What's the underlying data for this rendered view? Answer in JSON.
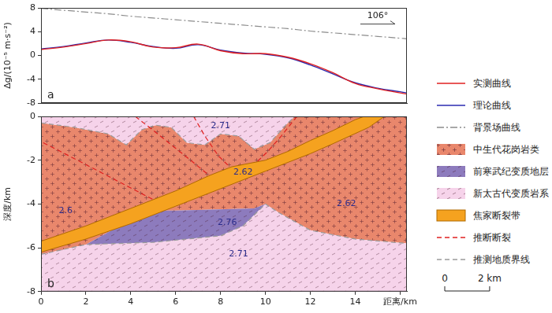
{
  "chart_data": [
    {
      "type": "line",
      "panel": "a",
      "y_label": "Δg/(10⁻⁵ m·s⁻²)",
      "xlim": [
        0,
        16.3
      ],
      "ylim": [
        -8,
        8
      ],
      "yticks": [
        -8,
        -4,
        0,
        4,
        8
      ],
      "tick_labels": "y",
      "grid": false,
      "legend": "right",
      "x": [
        0,
        1,
        2,
        3,
        4,
        5,
        6,
        7,
        8,
        9,
        10,
        11,
        12,
        13,
        14,
        15,
        16,
        16.3
      ],
      "series": [
        {
          "name": "实测曲线",
          "color": "#e02020",
          "line_style": "solid",
          "values": [
            1.0,
            1.4,
            2.0,
            2.6,
            2.3,
            1.4,
            1.3,
            1.9,
            0.8,
            0.3,
            0.3,
            -0.3,
            -1.4,
            -2.9,
            -4.7,
            -5.6,
            -6.3,
            -6.5
          ]
        },
        {
          "name": "理论曲线",
          "color": "#2b2bb0",
          "line_style": "solid",
          "values": [
            1.1,
            1.5,
            2.1,
            2.6,
            2.2,
            1.5,
            1.2,
            1.8,
            0.9,
            0.4,
            0.2,
            -0.4,
            -1.6,
            -3.1,
            -4.6,
            -5.5,
            -6.1,
            -6.3
          ]
        },
        {
          "name": "背景场曲线",
          "color": "#8c8c8c",
          "line_style": "dashdot",
          "values": [
            7.9,
            7.6,
            7.3,
            7.0,
            6.6,
            6.3,
            6.0,
            5.7,
            5.4,
            5.1,
            4.8,
            4.5,
            4.1,
            3.8,
            3.5,
            3.2,
            2.9,
            2.8
          ]
        }
      ],
      "annotations": [
        {
          "text": "106°",
          "x": 15.0,
          "y": 6.6
        }
      ]
    },
    {
      "type": "section",
      "panel": "b",
      "y_label": "深度/km",
      "xlim": [
        0,
        16.3
      ],
      "ylim": [
        -8,
        0
      ],
      "xticks": [
        0,
        2,
        4,
        6,
        8,
        10,
        12,
        14,
        {
          "value": 16,
          "label": "距离/km"
        }
      ],
      "yticks": [
        -8,
        -6,
        -4,
        -2,
        0
      ],
      "grid": false,
      "series": [
        {
          "name": "中生代花岗岩类",
          "type": "polygon",
          "color": "#e9876c",
          "marker": "plus",
          "x": [
            0,
            1.5,
            3,
            3.8,
            4.5,
            5.1,
            5.8,
            6.5,
            7.3,
            8,
            8.8,
            9.5,
            10.2,
            10.9,
            11.3,
            16.3,
            16.3,
            14,
            12,
            10.6,
            10,
            9.5,
            6,
            4.8,
            3.5,
            2,
            0
          ],
          "y": [
            -0.3,
            -0.5,
            -0.8,
            -1.3,
            -0.6,
            -0.4,
            -0.5,
            -1.2,
            -1.3,
            -0.8,
            -0.9,
            -1.5,
            -1.2,
            -0.4,
            0,
            0,
            -5.8,
            -5.6,
            -5.2,
            -4.4,
            -4.0,
            -4.2,
            -4.3,
            -4.3,
            -5.0,
            -5.85,
            -6.3
          ]
        },
        {
          "name": "前寒武纪变质地层",
          "type": "polygon",
          "color": "#8d7bbd",
          "marker": "dash",
          "x": [
            4.8,
            6,
            9.5,
            10,
            9.6,
            9,
            8,
            5,
            2,
            3.5
          ],
          "y": [
            -4.3,
            -4.3,
            -4.2,
            -4.0,
            -4.4,
            -5.0,
            -5.45,
            -5.75,
            -5.85,
            -5.0
          ]
        },
        {
          "name": "新太古代变质岩系",
          "type": "polygon",
          "color": "#f6d3ea",
          "marker": "dash",
          "x": [
            0,
            11.3,
            10.9,
            10.2,
            9.5,
            8.8,
            8,
            7.3,
            6.5,
            5.8,
            5.1,
            4.5,
            3.8,
            3,
            1.5,
            0,
            null,
            0,
            2,
            5,
            8,
            9,
            9.6,
            10,
            10.6,
            12,
            14,
            16.3,
            16.3,
            0
          ],
          "y": [
            0,
            0,
            -0.4,
            -1.2,
            -1.5,
            -0.9,
            -0.8,
            -1.3,
            -1.2,
            -0.5,
            -0.4,
            -0.6,
            -1.3,
            -0.8,
            -0.5,
            -0.3,
            null,
            -6.3,
            -5.85,
            -5.75,
            -5.45,
            -5.0,
            -4.4,
            -4.0,
            -4.4,
            -5.2,
            -5.6,
            -5.8,
            -8,
            -8
          ]
        },
        {
          "name": "焦家断裂带",
          "type": "polygon",
          "color": "#f5a21f",
          "x": [
            0,
            2,
            4,
            6,
            7.5,
            8.5,
            10,
            11,
            12,
            13,
            14,
            14.4,
            15.3,
            14.6,
            13,
            12,
            11,
            10,
            9,
            8,
            6,
            4,
            2,
            0
          ],
          "y": [
            -5.7,
            -5.0,
            -4.2,
            -3.4,
            -2.7,
            -2.3,
            -2.0,
            -1.6,
            -1.1,
            -0.65,
            -0.15,
            0,
            0,
            -0.5,
            -1.25,
            -1.7,
            -2.1,
            -2.5,
            -2.9,
            -3.3,
            -4.1,
            -4.9,
            -5.6,
            -6.2
          ]
        },
        {
          "name": "推断断裂",
          "type": "line",
          "color": "#e02020",
          "line_style": "dashed",
          "x": [
            0.1,
            2,
            3.5,
            5,
            null,
            4.2,
            5.2,
            6.3,
            7.5,
            null,
            6.8,
            7.3,
            7.9,
            8.4,
            null,
            11.4,
            10.7,
            10.1,
            9.6
          ],
          "y": [
            -1.2,
            -2.2,
            -3.0,
            -3.8,
            null,
            0,
            -0.8,
            -1.7,
            -2.7,
            null,
            0,
            -0.9,
            -1.8,
            -2.3,
            null,
            0,
            -0.9,
            -1.6,
            -2.1
          ]
        },
        {
          "name": "推测地质界线",
          "type": "line",
          "color": "#9a9a9a",
          "line_style": "dashed",
          "x": [
            0,
            1.5,
            3,
            3.8,
            4.5,
            5.1,
            5.8,
            6.5,
            7.3,
            8,
            8.8,
            9.5,
            10.2,
            10.9,
            11.3,
            null,
            0,
            2,
            5,
            8,
            9,
            9.6,
            10,
            10.6,
            12,
            14,
            16.3
          ],
          "y": [
            -0.3,
            -0.5,
            -0.8,
            -1.3,
            -0.6,
            -0.4,
            -0.5,
            -1.2,
            -1.3,
            -0.8,
            -0.9,
            -1.5,
            -1.2,
            -0.4,
            0,
            null,
            -6.3,
            -5.85,
            -5.75,
            -5.45,
            -5.0,
            -4.4,
            -4.0,
            -4.4,
            -5.2,
            -5.6,
            -5.8
          ]
        }
      ],
      "annotations": [
        {
          "text": "2.71",
          "x": 8.0,
          "y": -0.45
        },
        {
          "text": "2.62",
          "x": 9.0,
          "y": -2.55
        },
        {
          "text": "2.6",
          "x": 1.1,
          "y": -4.3
        },
        {
          "text": "2.62",
          "x": 13.6,
          "y": -4.0
        },
        {
          "text": "2.76",
          "x": 8.3,
          "y": -4.85
        },
        {
          "text": "2.71",
          "x": 8.8,
          "y": -6.3
        }
      ],
      "scale_bar": {
        "length": 2,
        "labels": [
          "0",
          "2 km"
        ]
      }
    }
  ]
}
